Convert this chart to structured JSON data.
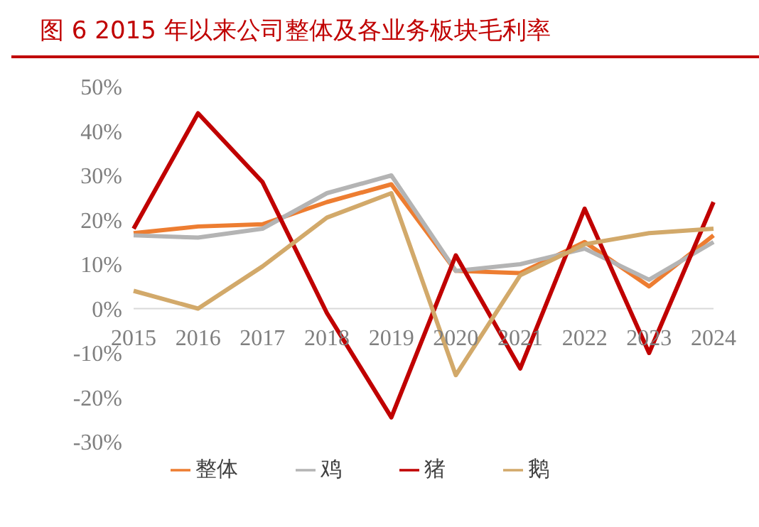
{
  "chart_data": {
    "type": "line",
    "title": "图 6   2015 年以来公司整体及各业务板块毛利率",
    "categories": [
      "2015",
      "2016",
      "2017",
      "2018",
      "2019",
      "2020",
      "2021",
      "2022",
      "2023",
      "2024"
    ],
    "series": [
      {
        "name": "整体",
        "color": "#ed7d31",
        "values": [
          17,
          18.5,
          19,
          24,
          28,
          8.5,
          8,
          15,
          5,
          16.5
        ]
      },
      {
        "name": "鸡",
        "color": "#b4b4b4",
        "values": [
          16.5,
          16,
          18,
          26,
          30,
          8.5,
          10,
          13.5,
          6.5,
          15
        ]
      },
      {
        "name": "猪",
        "color": "#c00000",
        "values": [
          18,
          44,
          28.5,
          -1,
          -24.5,
          12,
          -13.5,
          22.5,
          -10,
          24
        ]
      },
      {
        "name": "鹅",
        "color": "#d2a96a",
        "values": [
          4,
          0,
          9.5,
          20.5,
          26,
          -15,
          7.5,
          14.5,
          17,
          18
        ]
      }
    ],
    "ylim": [
      -30,
      50
    ],
    "yticks": [
      {
        "value": -30,
        "label": "-30%"
      },
      {
        "value": -20,
        "label": "-20%"
      },
      {
        "value": -10,
        "label": "-10%"
      },
      {
        "value": 0,
        "label": "0%"
      },
      {
        "value": 10,
        "label": "10%"
      },
      {
        "value": 20,
        "label": "20%"
      },
      {
        "value": 30,
        "label": "30%"
      },
      {
        "value": 40,
        "label": "40%"
      },
      {
        "value": 50,
        "label": "50%"
      }
    ],
    "grid": false,
    "legend": "bottom",
    "marker": "none",
    "line_style": "solid"
  }
}
